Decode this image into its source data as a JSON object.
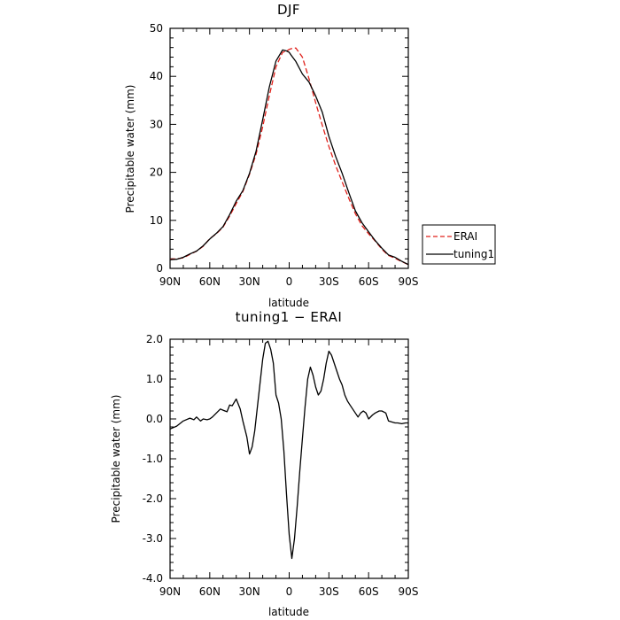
{
  "chart_data": [
    {
      "type": "line",
      "title": "DJF",
      "xlabel": "latitude",
      "ylabel": "Precipitable water (mm)",
      "xlim": [
        90,
        -90
      ],
      "ylim": [
        0,
        50
      ],
      "xticks": [
        90,
        60,
        30,
        0,
        -30,
        -60,
        -90
      ],
      "xtick_labels": [
        "90N",
        "60N",
        "30N",
        "0",
        "30S",
        "60S",
        "90S"
      ],
      "yticks": [
        0,
        10,
        20,
        30,
        40,
        50
      ],
      "ytick_labels": [
        "0",
        "10",
        "20",
        "30",
        "40",
        "50"
      ],
      "legend": "right",
      "series": [
        {
          "name": "ERAI",
          "color": "#e0201a",
          "dash": "dashed",
          "x": [
            90,
            85,
            80,
            75,
            70,
            65,
            60,
            55,
            50,
            45,
            40,
            35,
            30,
            25,
            20,
            15,
            10,
            5,
            2,
            0,
            -2,
            -5,
            -10,
            -15,
            -20,
            -25,
            -30,
            -35,
            -40,
            -45,
            -50,
            -55,
            -60,
            -65,
            -70,
            -75,
            -80,
            -85,
            -90
          ],
          "y": [
            1.9,
            2.0,
            2.2,
            2.9,
            3.6,
            4.6,
            6.2,
            7.2,
            8.6,
            10.9,
            13.5,
            16.0,
            19.6,
            23.8,
            29.5,
            36.0,
            42.0,
            45.0,
            45.3,
            45.6,
            45.8,
            45.9,
            44.0,
            39.5,
            34.5,
            29.8,
            25.4,
            21.5,
            18.0,
            14.6,
            11.4,
            8.9,
            7.2,
            5.7,
            4.0,
            2.7,
            2.1,
            1.4,
            0.8
          ]
        },
        {
          "name": "tuning1",
          "color": "#000000",
          "dash": "solid",
          "x": [
            90,
            85,
            80,
            75,
            70,
            65,
            60,
            55,
            50,
            45,
            40,
            35,
            30,
            25,
            20,
            15,
            10,
            5,
            2,
            0,
            -2,
            -5,
            -10,
            -15,
            -20,
            -25,
            -30,
            -35,
            -40,
            -45,
            -50,
            -55,
            -60,
            -65,
            -70,
            -75,
            -80,
            -85,
            -90
          ],
          "y": [
            1.8,
            1.9,
            2.3,
            3.0,
            3.6,
            4.7,
            6.1,
            7.3,
            8.7,
            11.2,
            14.0,
            16.2,
            19.8,
            24.4,
            31.0,
            37.8,
            43.2,
            45.5,
            45.3,
            45.0,
            44.2,
            43.1,
            40.5,
            38.8,
            35.9,
            32.5,
            27.5,
            23.4,
            19.8,
            15.8,
            12.0,
            9.5,
            7.6,
            5.8,
            4.2,
            2.8,
            2.3,
            1.5,
            0.8
          ]
        }
      ]
    },
    {
      "type": "line",
      "title": "tuning1 − ERAI",
      "xlabel": "latitude",
      "ylabel": "Precipitable water (mm)",
      "xlim": [
        90,
        -90
      ],
      "ylim": [
        -4,
        2
      ],
      "xticks": [
        90,
        60,
        30,
        0,
        -30,
        -60,
        -90
      ],
      "xtick_labels": [
        "90N",
        "60N",
        "30N",
        "0",
        "30S",
        "60S",
        "90S"
      ],
      "yticks": [
        -4,
        -3,
        -2,
        -1,
        0,
        1,
        2
      ],
      "ytick_labels": [
        "-4.0",
        "-3.0",
        "-2.0",
        "-1.0",
        "0.0",
        "1.0",
        "2.0"
      ],
      "series": [
        {
          "color": "#000000",
          "x": [
            90,
            85,
            80,
            75,
            72,
            70,
            67,
            65,
            62,
            60,
            58,
            55,
            52,
            50,
            47,
            45,
            43,
            40,
            37,
            35,
            32,
            30,
            28,
            26,
            24,
            22,
            20,
            18,
            16,
            14,
            12,
            10,
            8,
            6,
            4,
            2,
            0,
            -2,
            -4,
            -6,
            -8,
            -10,
            -12,
            -14,
            -16,
            -18,
            -20,
            -22,
            -24,
            -26,
            -28,
            -30,
            -32,
            -34,
            -36,
            -38,
            -40,
            -42,
            -44,
            -46,
            -48,
            -50,
            -52,
            -54,
            -56,
            -58,
            -60,
            -63,
            -65,
            -68,
            -70,
            -73,
            -75,
            -78,
            -80,
            -82,
            -85,
            -88,
            -90
          ],
          "y": [
            -0.25,
            -0.18,
            -0.05,
            0.02,
            -0.02,
            0.05,
            -0.05,
            0.0,
            -0.02,
            0.0,
            0.05,
            0.15,
            0.25,
            0.22,
            0.18,
            0.35,
            0.33,
            0.5,
            0.25,
            -0.05,
            -0.45,
            -0.88,
            -0.7,
            -0.3,
            0.3,
            0.9,
            1.5,
            1.9,
            1.95,
            1.75,
            1.4,
            0.6,
            0.4,
            0.0,
            -0.8,
            -1.9,
            -2.9,
            -3.5,
            -3.0,
            -2.2,
            -1.3,
            -0.5,
            0.3,
            1.0,
            1.3,
            1.1,
            0.8,
            0.6,
            0.7,
            1.0,
            1.4,
            1.7,
            1.6,
            1.4,
            1.2,
            1.0,
            0.85,
            0.6,
            0.45,
            0.35,
            0.25,
            0.15,
            0.05,
            0.15,
            0.2,
            0.15,
            0.0,
            0.1,
            0.15,
            0.2,
            0.2,
            0.15,
            -0.05,
            -0.08,
            -0.1,
            -0.1,
            -0.12,
            -0.1,
            -0.1
          ]
        }
      ]
    }
  ]
}
